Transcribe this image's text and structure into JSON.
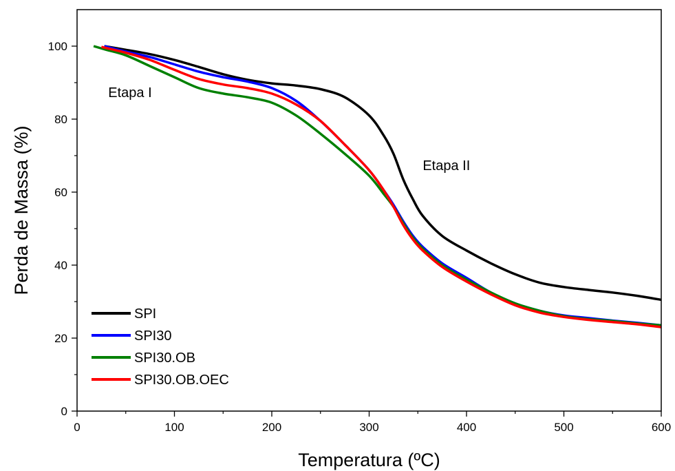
{
  "chart_data": {
    "type": "line",
    "xlabel": "Temperatura (ºC)",
    "ylabel": "Perda de Massa (%)",
    "xlim": [
      0,
      600
    ],
    "ylim": [
      0,
      110
    ],
    "xticks": [
      0,
      100,
      200,
      300,
      400,
      500,
      600
    ],
    "yticks": [
      0,
      20,
      40,
      60,
      80,
      100
    ],
    "xtick_labels": [
      "0",
      "100",
      "200",
      "300",
      "400",
      "500",
      "600"
    ],
    "ytick_labels": [
      "0",
      "20",
      "40",
      "60",
      "80",
      "100"
    ],
    "grid": false,
    "legend_position": "bottom-left",
    "annotations": [
      {
        "text": "Etapa I",
        "x": 32,
        "y": 86
      },
      {
        "text": "Etapa II",
        "x": 355,
        "y": 66
      }
    ],
    "series": [
      {
        "name": "SPI",
        "color": "#000000",
        "x": [
          28,
          50,
          75,
          100,
          125,
          150,
          175,
          200,
          225,
          250,
          275,
          300,
          315,
          325,
          335,
          345,
          355,
          375,
          400,
          425,
          450,
          475,
          500,
          525,
          550,
          575,
          600
        ],
        "y": [
          100,
          99,
          97.8,
          96.2,
          94.3,
          92.3,
          90.8,
          89.8,
          89.2,
          88.2,
          86,
          81,
          75.5,
          70.5,
          63.5,
          58,
          53.5,
          48,
          44,
          40.5,
          37.5,
          35.2,
          34,
          33.2,
          32.5,
          31.6,
          30.5
        ]
      },
      {
        "name": "SPI30",
        "color": "#0000ff",
        "x": [
          28,
          50,
          75,
          100,
          125,
          150,
          175,
          200,
          225,
          250,
          275,
          300,
          315,
          325,
          335,
          345,
          355,
          375,
          400,
          425,
          450,
          475,
          500,
          525,
          550,
          575,
          600
        ],
        "y": [
          100,
          98.5,
          97,
          95,
          93,
          91.5,
          90.3,
          88.5,
          85,
          79.5,
          73,
          66,
          60.5,
          56.5,
          52,
          48,
          45,
          40.5,
          36.5,
          32.5,
          29.5,
          27.5,
          26.2,
          25.5,
          24.8,
          24.2,
          23.5
        ]
      },
      {
        "name": "SPI30.OB",
        "color": "#008000",
        "x": [
          17,
          30,
          50,
          75,
          100,
          125,
          150,
          175,
          200,
          225,
          250,
          275,
          300,
          315,
          325,
          335,
          345,
          355,
          375,
          400,
          425,
          450,
          475,
          500,
          525,
          550,
          575,
          600
        ],
        "y": [
          100,
          99,
          97.5,
          94.5,
          91.5,
          88.5,
          87,
          86,
          84.5,
          81,
          76,
          70.5,
          64.5,
          59.5,
          56,
          51.5,
          47.5,
          44.5,
          40,
          36,
          32.5,
          29.5,
          27.5,
          26,
          25.2,
          24.7,
          24,
          23.5
        ]
      },
      {
        "name": "SPI30.OB.OEC",
        "color": "#ff0000",
        "x": [
          25,
          50,
          75,
          100,
          125,
          150,
          175,
          200,
          225,
          250,
          275,
          300,
          315,
          325,
          335,
          345,
          355,
          375,
          400,
          425,
          450,
          475,
          500,
          525,
          550,
          575,
          600
        ],
        "y": [
          99.8,
          98.2,
          96.2,
          93.5,
          91,
          89.5,
          88.5,
          87,
          84,
          79.5,
          73,
          66,
          60.5,
          56,
          51,
          47,
          44,
          39.5,
          35.5,
          32,
          29,
          27,
          25.8,
          25,
          24.4,
          23.8,
          23
        ]
      }
    ]
  }
}
